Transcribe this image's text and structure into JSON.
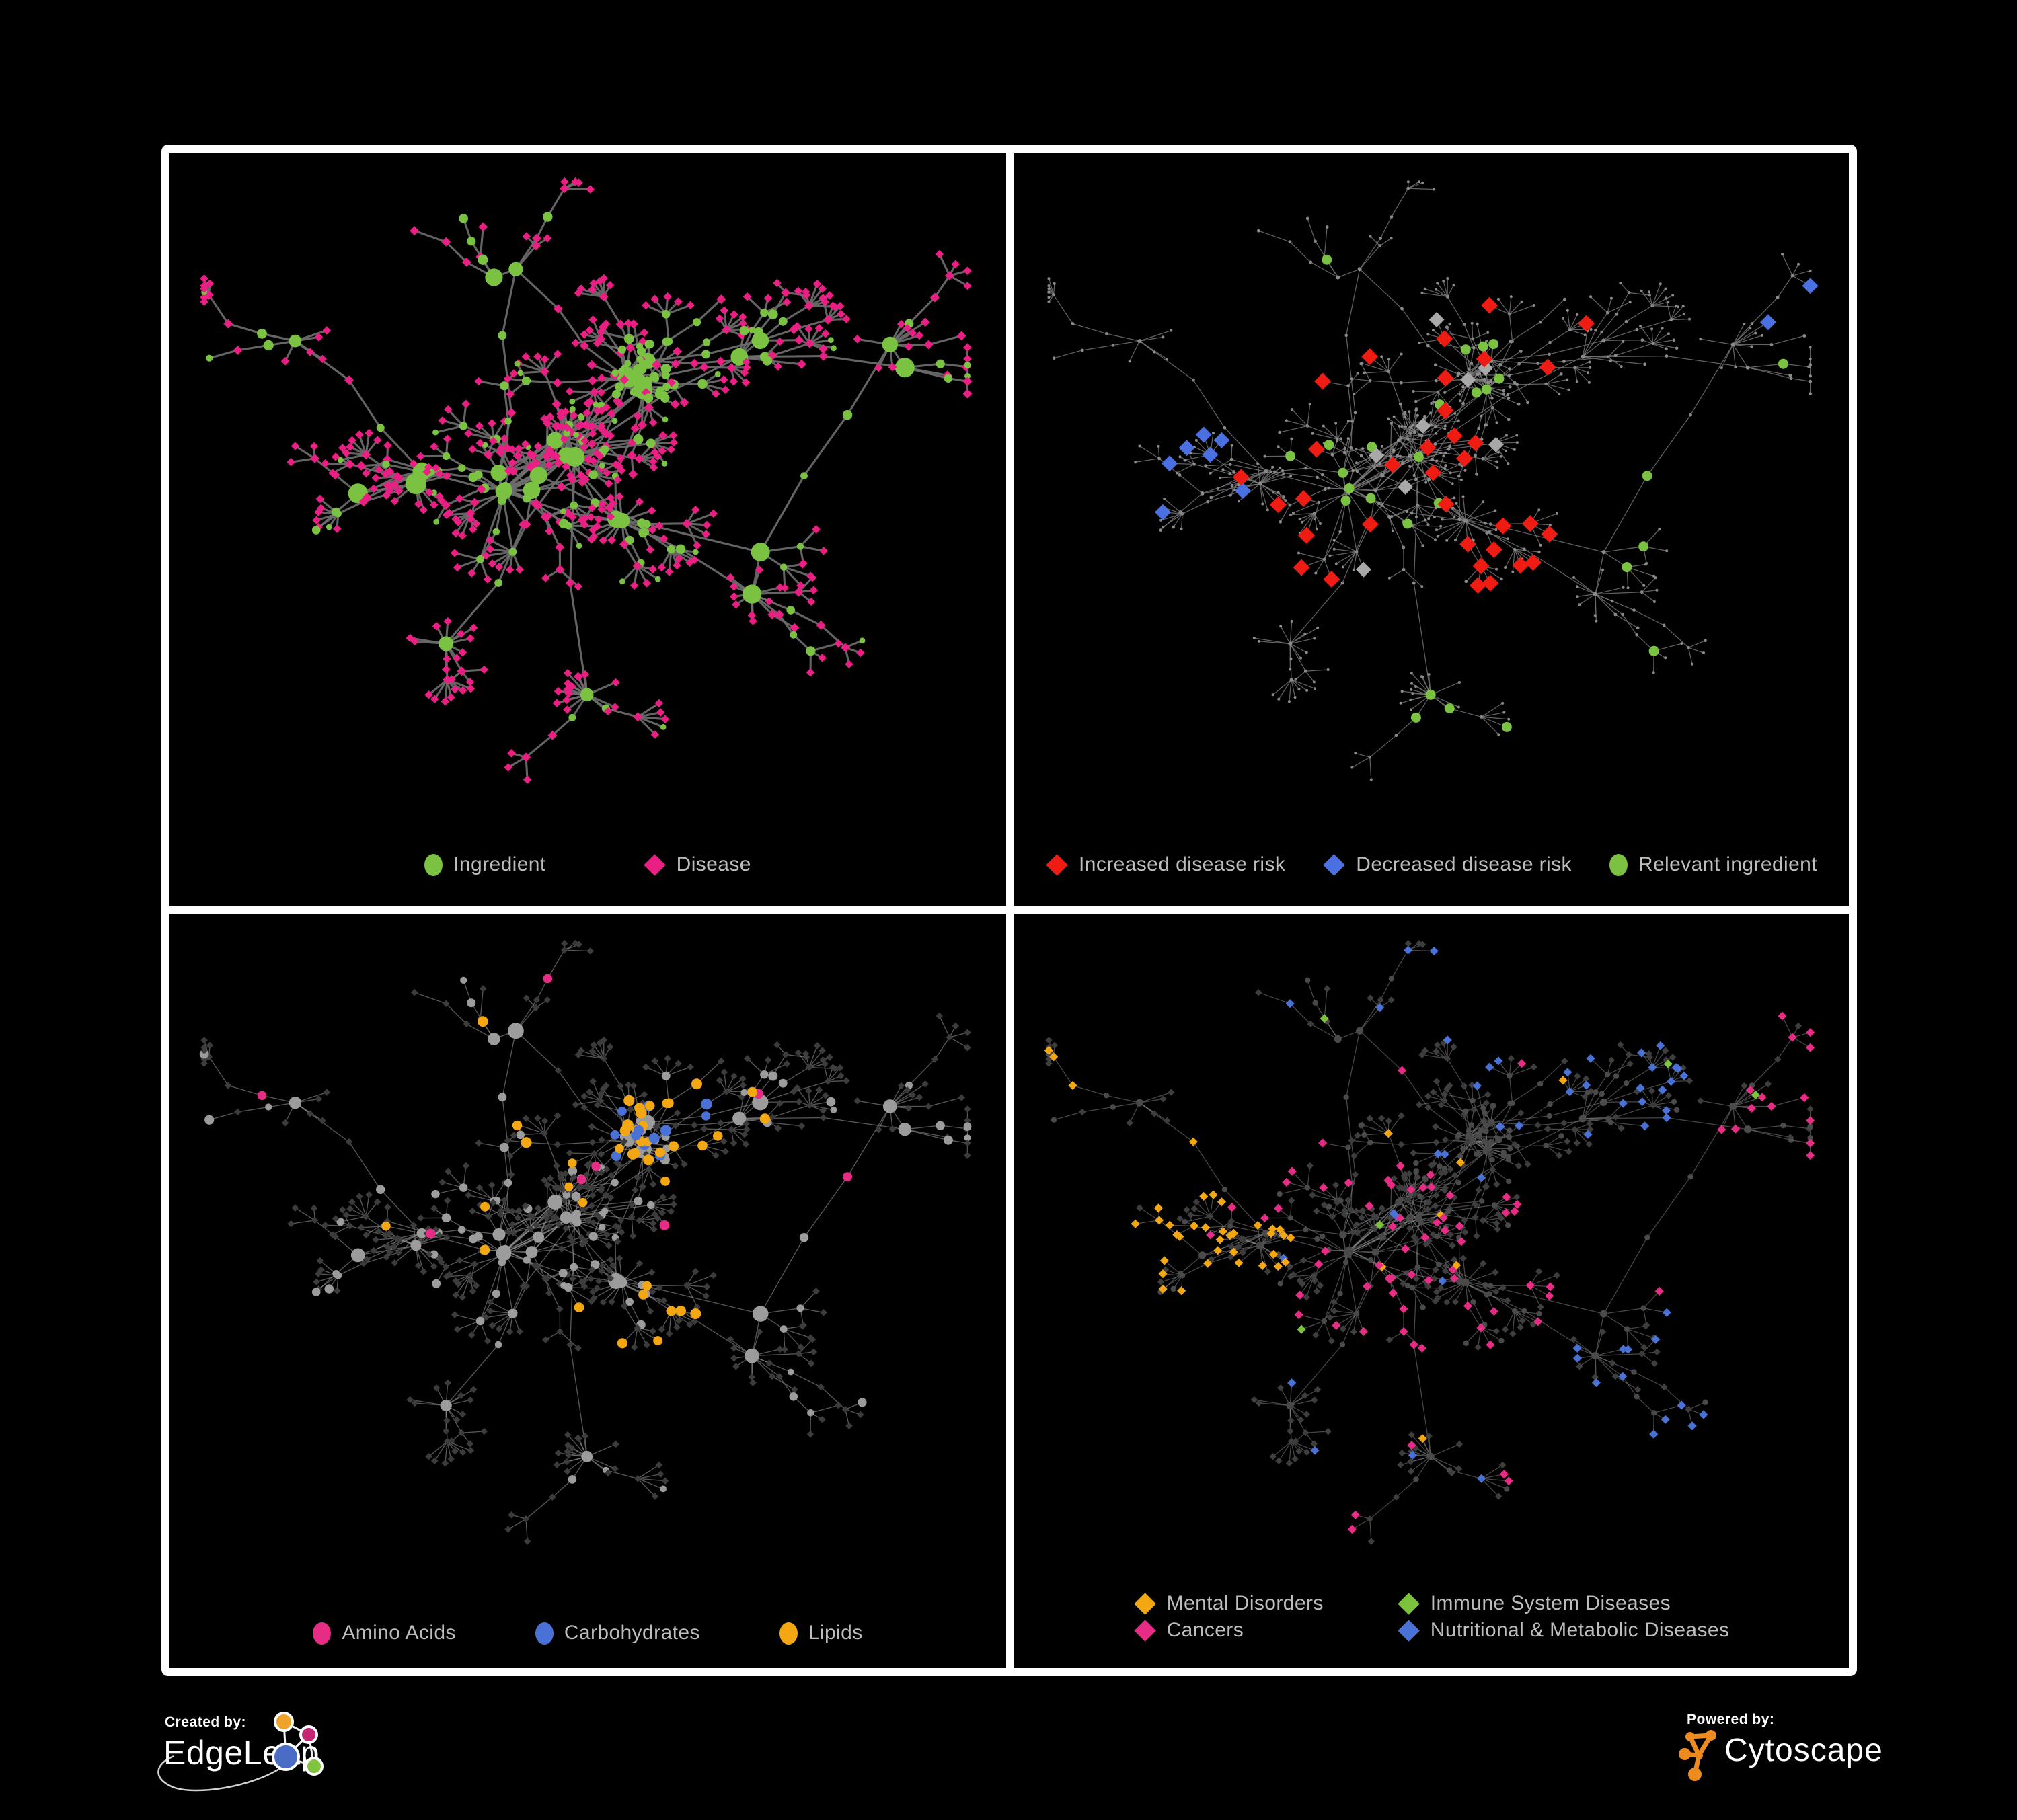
{
  "page": {
    "background": "#000000",
    "frame_color": "#ffffff"
  },
  "legend_text_color": "#bdbdbd",
  "panels": [
    {
      "name": "ingredient-disease-network",
      "legend": {
        "layout": "row",
        "items": [
          {
            "label": "Ingredient",
            "shape": "ellipse",
            "color": "#7cc242"
          },
          {
            "label": "Disease",
            "shape": "diamond",
            "color": "#ea1f83"
          }
        ]
      },
      "colors": {
        "edge": "#6c6c6c",
        "ingredient": "#7cc242",
        "disease": "#ea1f83"
      }
    },
    {
      "name": "disease-risk-network",
      "legend": {
        "layout": "row",
        "items": [
          {
            "label": "Increased disease risk",
            "shape": "diamond",
            "color": "#ee1c12"
          },
          {
            "label": "Decreased disease risk",
            "shape": "diamond",
            "color": "#4a70e2"
          },
          {
            "label": "Relevant ingredient",
            "shape": "ellipse",
            "color": "#7cc242"
          }
        ]
      },
      "colors": {
        "edge": "#7a7a7a",
        "base": "#8a8a8a",
        "increased": "#ee1c12",
        "decreased": "#4a70e2",
        "neutral": "#a9a9a9",
        "ingredient": "#7cc242"
      }
    },
    {
      "name": "nutrient-class-network",
      "legend": {
        "layout": "row",
        "items": [
          {
            "label": "Amino Acids",
            "shape": "ellipse",
            "color": "#e72c86"
          },
          {
            "label": "Carbohydrates",
            "shape": "ellipse",
            "color": "#4a72d6"
          },
          {
            "label": "Lipids",
            "shape": "ellipse",
            "color": "#f3a712"
          }
        ]
      },
      "colors": {
        "edge": "#919191",
        "ingredient": "#9c9c9c",
        "disease": "#3c3c3c",
        "amino": "#e72c86",
        "carb": "#4a72d6",
        "lipid": "#f3a712"
      }
    },
    {
      "name": "disease-class-network",
      "legend": {
        "layout": "grid",
        "items": [
          {
            "label": "Mental Disorders",
            "shape": "diamond",
            "color": "#f3a712"
          },
          {
            "label": "Immune System Diseases",
            "shape": "diamond",
            "color": "#7cc23c"
          },
          {
            "label": "Cancers",
            "shape": "diamond",
            "color": "#e72c86"
          },
          {
            "label": "Nutritional & Metabolic Diseases",
            "shape": "diamond",
            "color": "#4a72d6"
          }
        ]
      },
      "colors": {
        "edge": "#8f8f8f",
        "ingredient": "#4a4a4a",
        "disease": "#3e3e3e",
        "mental": "#f3a712",
        "immune": "#7cc23c",
        "cancer": "#e72c86",
        "metabolic": "#4a72d6"
      }
    }
  ],
  "footer": {
    "created_by": "Created by:",
    "brand": "EdgeLeap",
    "powered_by": "Powered by:",
    "engine": "Cytoscape",
    "edgeleap_colors": {
      "orange": "#f0a32a",
      "pink": "#c52572",
      "blue": "#4a6cc4",
      "green": "#7fc341"
    },
    "cytoscape_orange": "#ed8b1f",
    "text_color": "#ffffff"
  },
  "chart_data": {
    "type": "network",
    "panels": 4,
    "shared_topology": true,
    "node_shapes": {
      "ingredient": "ellipse",
      "disease": "diamond"
    },
    "approx_node_count": 650,
    "panel_legends": [
      [
        "Ingredient",
        "Disease"
      ],
      [
        "Increased disease risk",
        "Decreased disease risk",
        "Relevant ingredient"
      ],
      [
        "Amino Acids",
        "Carbohydrates",
        "Lipids"
      ],
      [
        "Mental Disorders",
        "Immune System Diseases",
        "Cancers",
        "Nutritional & Metabolic Diseases"
      ]
    ]
  }
}
